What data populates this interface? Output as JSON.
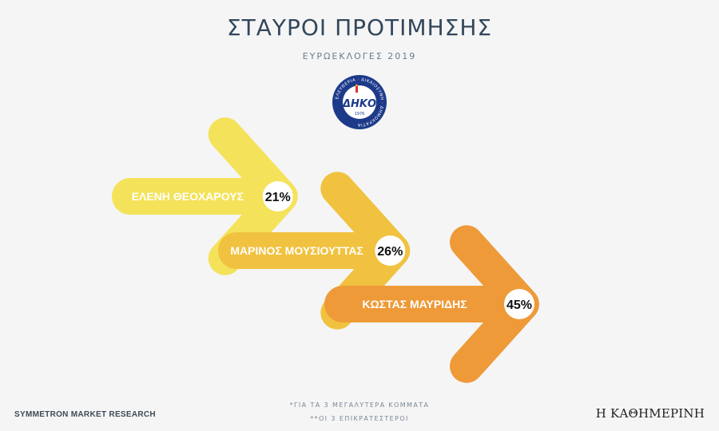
{
  "header": {
    "title": "ΣΤΑΥΡΟΙ ΠΡΟΤΙΜΗΣΗΣ",
    "subtitle": "ΕΥΡΩΕΚΛΟΓΕΣ 2019"
  },
  "logo": {
    "name": "ΔΗΚΟ",
    "ring_text": "ΕΛΕΥΘΕΡΙΑ · ΔΙΚΑΙΟΣΥΝΗ · ΔΗΜΟΚΡΑΤΙΑ",
    "year": "1976"
  },
  "colors": {
    "arrow_1": "#f4e25a",
    "arrow_2": "#f0c23f",
    "arrow_3": "#ee9a38",
    "label_text": "#ffffff",
    "badge_bg": "#ffffff",
    "badge_text": "#111111",
    "logo_blue": "#1d3a8a"
  },
  "chart_data": {
    "type": "bar",
    "categories": [
      "ΕΛΕΝΗ ΘΕΟΧΑΡΟΥΣ",
      "ΜΑΡΙΝΟΣ ΜΟΥΣΙΟΥΤΤΑΣ",
      "ΚΩΣΤΑΣ ΜΑΥΡΙΔΗΣ"
    ],
    "values": [
      21,
      26,
      45
    ],
    "value_labels": [
      "21%",
      "26%",
      "45%"
    ],
    "unit": "%"
  },
  "footer": {
    "source": "SYMMETRON MARKET RESEARCH",
    "note_1": "*ΓΙΑ ΤΑ 3 ΜΕΓΑΛΥΤΕΡΑ ΚΟΜΜΑΤΑ",
    "note_2": "**ΟΙ 3 ΕΠΙΚΡΑΤΕΣΤΕΡΟΙ",
    "publisher": "Η ΚΑΘΗΜΕΡΙΝΗ"
  }
}
